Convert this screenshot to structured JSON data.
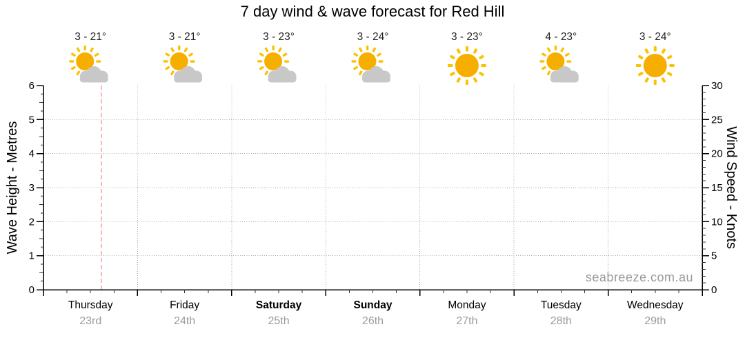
{
  "title": "7 day wind & wave forecast for Red Hill",
  "watermark": "seabreeze.com.au",
  "chart_data": {
    "type": "line",
    "title": "7 day wind & wave forecast for Red Hill",
    "series": [],
    "x": {
      "days": [
        {
          "name": "Thursday",
          "date": "23rd",
          "bold": false,
          "temp": "3 - 21°",
          "icon": "partly-cloudy-icon"
        },
        {
          "name": "Friday",
          "date": "24th",
          "bold": false,
          "temp": "3 - 21°",
          "icon": "partly-cloudy-icon"
        },
        {
          "name": "Saturday",
          "date": "25th",
          "bold": true,
          "temp": "3 - 23°",
          "icon": "partly-cloudy-icon"
        },
        {
          "name": "Sunday",
          "date": "26th",
          "bold": true,
          "temp": "3 - 24°",
          "icon": "partly-cloudy-icon"
        },
        {
          "name": "Monday",
          "date": "27th",
          "bold": false,
          "temp": "3 - 23°",
          "icon": "sunny-icon"
        },
        {
          "name": "Tuesday",
          "date": "28th",
          "bold": false,
          "temp": "4 - 23°",
          "icon": "partly-cloudy-icon"
        },
        {
          "name": "Wednesday",
          "date": "29th",
          "bold": false,
          "temp": "3 - 24°",
          "icon": "sunny-icon"
        }
      ],
      "minor_ticks_per_day": 4
    },
    "left_axis": {
      "label": "Wave Height - Metres",
      "min": 0,
      "max": 6,
      "ticks": [
        0,
        1,
        2,
        3,
        4,
        5,
        6
      ],
      "minor_step": 0.25
    },
    "right_axis": {
      "label": "Wind Speed - Knots",
      "min": 0,
      "max": 30,
      "ticks": [
        0,
        5,
        10,
        15,
        20,
        25,
        30
      ],
      "minor_step": 1
    },
    "gridlines": {
      "horizontal_at": [
        1,
        2,
        3,
        4,
        5
      ],
      "vertical": "day-boundaries",
      "style": "dotted"
    },
    "now_marker": {
      "day_index": 0,
      "day_fraction": 0.615,
      "style": "dashed"
    },
    "legend": "none"
  },
  "colors": {
    "sun": "#F6AE00",
    "sun_rays": "#FBC200",
    "cloud": "#C8C8C8",
    "grid": "#ABABAB",
    "axis": "#000000",
    "now_line": "#F2A7A2",
    "tick_text": "#000000",
    "day_text": "#000000",
    "date_text": "#9B9B9B",
    "temp_text": "#262626",
    "watermark_text": "#9A9A9A"
  }
}
